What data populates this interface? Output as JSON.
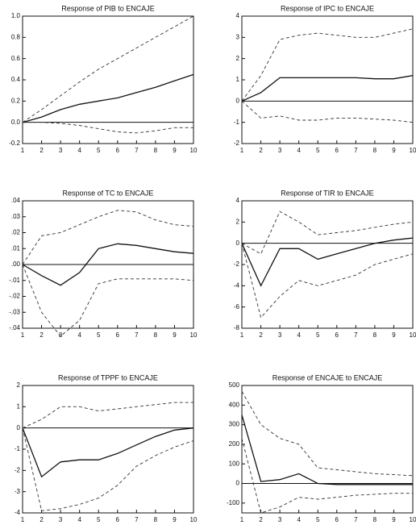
{
  "chart_data": [
    {
      "type": "line",
      "title": "Response of PIB to ENCAJE",
      "x": [
        1,
        2,
        3,
        4,
        5,
        6,
        7,
        8,
        9,
        10
      ],
      "xlim": [
        1,
        10
      ],
      "xticks": [
        1,
        2,
        3,
        4,
        5,
        6,
        7,
        8,
        9,
        10
      ],
      "ylim": [
        -0.2,
        1.0
      ],
      "yticks": [
        {
          "value": -0.2,
          "label": "-0.2"
        },
        {
          "value": 0,
          "label": "0.0"
        },
        0.2,
        0.4,
        0.6,
        0.8,
        {
          "value": 1,
          "label": "1.0"
        }
      ],
      "series": [
        {
          "color": "#111",
          "style": "solid",
          "values": [
            0,
            0.05,
            0.12,
            0.17,
            0.2,
            0.23,
            0.28,
            0.33,
            0.39,
            0.45
          ]
        },
        {
          "color": "#333",
          "style": "dashed",
          "values": [
            0,
            0.12,
            0.25,
            0.38,
            0.5,
            0.6,
            0.7,
            0.8,
            0.9,
            1.0
          ]
        },
        {
          "color": "#333",
          "style": "dashed",
          "values": [
            0,
            0,
            -0.01,
            -0.03,
            -0.06,
            -0.09,
            -0.1,
            -0.08,
            -0.05,
            -0.05
          ]
        }
      ]
    },
    {
      "type": "line",
      "title": "Response of IPC to ENCAJE",
      "x": [
        1,
        2,
        3,
        4,
        5,
        6,
        7,
        8,
        9,
        10
      ],
      "xlim": [
        1,
        10
      ],
      "xticks": [
        1,
        2,
        3,
        4,
        5,
        6,
        7,
        8,
        9,
        10
      ],
      "ylim": [
        -2,
        4
      ],
      "yticks": [
        -2,
        -1,
        0,
        1,
        2,
        3,
        4
      ],
      "series": [
        {
          "color": "#111",
          "style": "solid",
          "values": [
            0,
            0.4,
            1.1,
            1.1,
            1.1,
            1.1,
            1.1,
            1.05,
            1.05,
            1.2
          ]
        },
        {
          "color": "#333",
          "style": "dashed",
          "values": [
            0,
            1.2,
            2.9,
            3.1,
            3.2,
            3.1,
            3.0,
            3.0,
            3.2,
            3.4
          ]
        },
        {
          "color": "#333",
          "style": "dashed",
          "values": [
            0,
            -0.8,
            -0.7,
            -0.9,
            -0.9,
            -0.8,
            -0.8,
            -0.85,
            -0.9,
            -1.0
          ]
        }
      ]
    },
    {
      "type": "line",
      "title": "Response of TC to ENCAJE",
      "x": [
        1,
        2,
        3,
        4,
        5,
        6,
        7,
        8,
        9,
        10
      ],
      "xlim": [
        1,
        10
      ],
      "xticks": [
        1,
        2,
        3,
        4,
        5,
        6,
        7,
        8,
        9,
        10
      ],
      "ylim": [
        -0.04,
        0.04
      ],
      "yticks": [
        {
          "value": -0.04,
          "label": "-.04"
        },
        {
          "value": -0.03,
          "label": "-.03"
        },
        {
          "value": -0.02,
          "label": "-.02"
        },
        {
          "value": -0.01,
          "label": "-.01"
        },
        {
          "value": 0,
          "label": ".00"
        },
        {
          "value": 0.01,
          "label": ".01"
        },
        {
          "value": 0.02,
          "label": ".02"
        },
        {
          "value": 0.03,
          "label": ".03"
        },
        {
          "value": 0.04,
          "label": ".04"
        }
      ],
      "series": [
        {
          "color": "#111",
          "style": "solid",
          "values": [
            0,
            -0.007,
            -0.013,
            -0.005,
            0.01,
            0.013,
            0.012,
            0.01,
            0.008,
            0.007
          ]
        },
        {
          "color": "#333",
          "style": "dashed",
          "values": [
            0,
            0.018,
            0.02,
            0.025,
            0.03,
            0.034,
            0.033,
            0.028,
            0.025,
            0.024
          ]
        },
        {
          "color": "#333",
          "style": "dashed",
          "values": [
            0,
            -0.03,
            -0.045,
            -0.035,
            -0.012,
            -0.009,
            -0.009,
            -0.009,
            -0.009,
            -0.01
          ]
        }
      ]
    },
    {
      "type": "line",
      "title": "Response of TIR to ENCAJE",
      "x": [
        1,
        2,
        3,
        4,
        5,
        6,
        7,
        8,
        9,
        10
      ],
      "xlim": [
        1,
        10
      ],
      "xticks": [
        1,
        2,
        3,
        4,
        5,
        6,
        7,
        8,
        9,
        10
      ],
      "ylim": [
        -8,
        4
      ],
      "yticks": [
        -8,
        -6,
        -4,
        -2,
        0,
        2,
        4
      ],
      "series": [
        {
          "color": "#111",
          "style": "solid",
          "values": [
            0,
            -4,
            -0.5,
            -0.5,
            -1.5,
            -1,
            -0.5,
            0,
            0.3,
            0.5
          ]
        },
        {
          "color": "#333",
          "style": "dashed",
          "values": [
            0,
            -1,
            3,
            2,
            0.8,
            1,
            1.2,
            1.5,
            1.8,
            2
          ]
        },
        {
          "color": "#333",
          "style": "dashed",
          "values": [
            0,
            -7,
            -5,
            -3.5,
            -4,
            -3.5,
            -3,
            -2,
            -1.5,
            -1
          ]
        }
      ]
    },
    {
      "type": "line",
      "title": "Response of TPPF to ENCAJE",
      "x": [
        1,
        2,
        3,
        4,
        5,
        6,
        7,
        8,
        9,
        10
      ],
      "xlim": [
        1,
        10
      ],
      "xticks": [
        1,
        2,
        3,
        4,
        5,
        6,
        7,
        8,
        9,
        10
      ],
      "ylim": [
        -4,
        2
      ],
      "yticks": [
        -4,
        -3,
        -2,
        -1,
        0,
        1,
        2
      ],
      "series": [
        {
          "color": "#111",
          "style": "solid",
          "values": [
            0,
            -2.3,
            -1.6,
            -1.5,
            -1.5,
            -1.2,
            -0.8,
            -0.4,
            -0.1,
            0
          ]
        },
        {
          "color": "#333",
          "style": "dashed",
          "values": [
            0,
            0.4,
            1.0,
            1.0,
            0.8,
            0.9,
            1.0,
            1.1,
            1.2,
            1.2
          ]
        },
        {
          "color": "#333",
          "style": "dashed",
          "values": [
            0,
            -3.9,
            -3.8,
            -3.6,
            -3.3,
            -2.7,
            -1.8,
            -1.3,
            -0.9,
            -0.6
          ]
        }
      ]
    },
    {
      "type": "line",
      "title": "Response of ENCAJE to ENCAJE",
      "x": [
        1,
        2,
        3,
        4,
        5,
        6,
        7,
        8,
        9,
        10
      ],
      "xlim": [
        1,
        10
      ],
      "xticks": [
        1,
        2,
        3,
        4,
        5,
        6,
        7,
        8,
        9,
        10
      ],
      "ylim": [
        -150,
        500
      ],
      "yticks": [
        -100,
        0,
        100,
        200,
        300,
        400,
        500
      ],
      "series": [
        {
          "color": "#111",
          "style": "solid",
          "values": [
            350,
            10,
            20,
            50,
            0,
            -5,
            -5,
            -5,
            -5,
            -5
          ]
        },
        {
          "color": "#333",
          "style": "dashed",
          "values": [
            470,
            300,
            230,
            200,
            80,
            70,
            60,
            50,
            45,
            40
          ]
        },
        {
          "color": "#333",
          "style": "dashed",
          "values": [
            230,
            -150,
            -120,
            -70,
            -80,
            -70,
            -60,
            -55,
            -50,
            -50
          ]
        }
      ]
    }
  ]
}
